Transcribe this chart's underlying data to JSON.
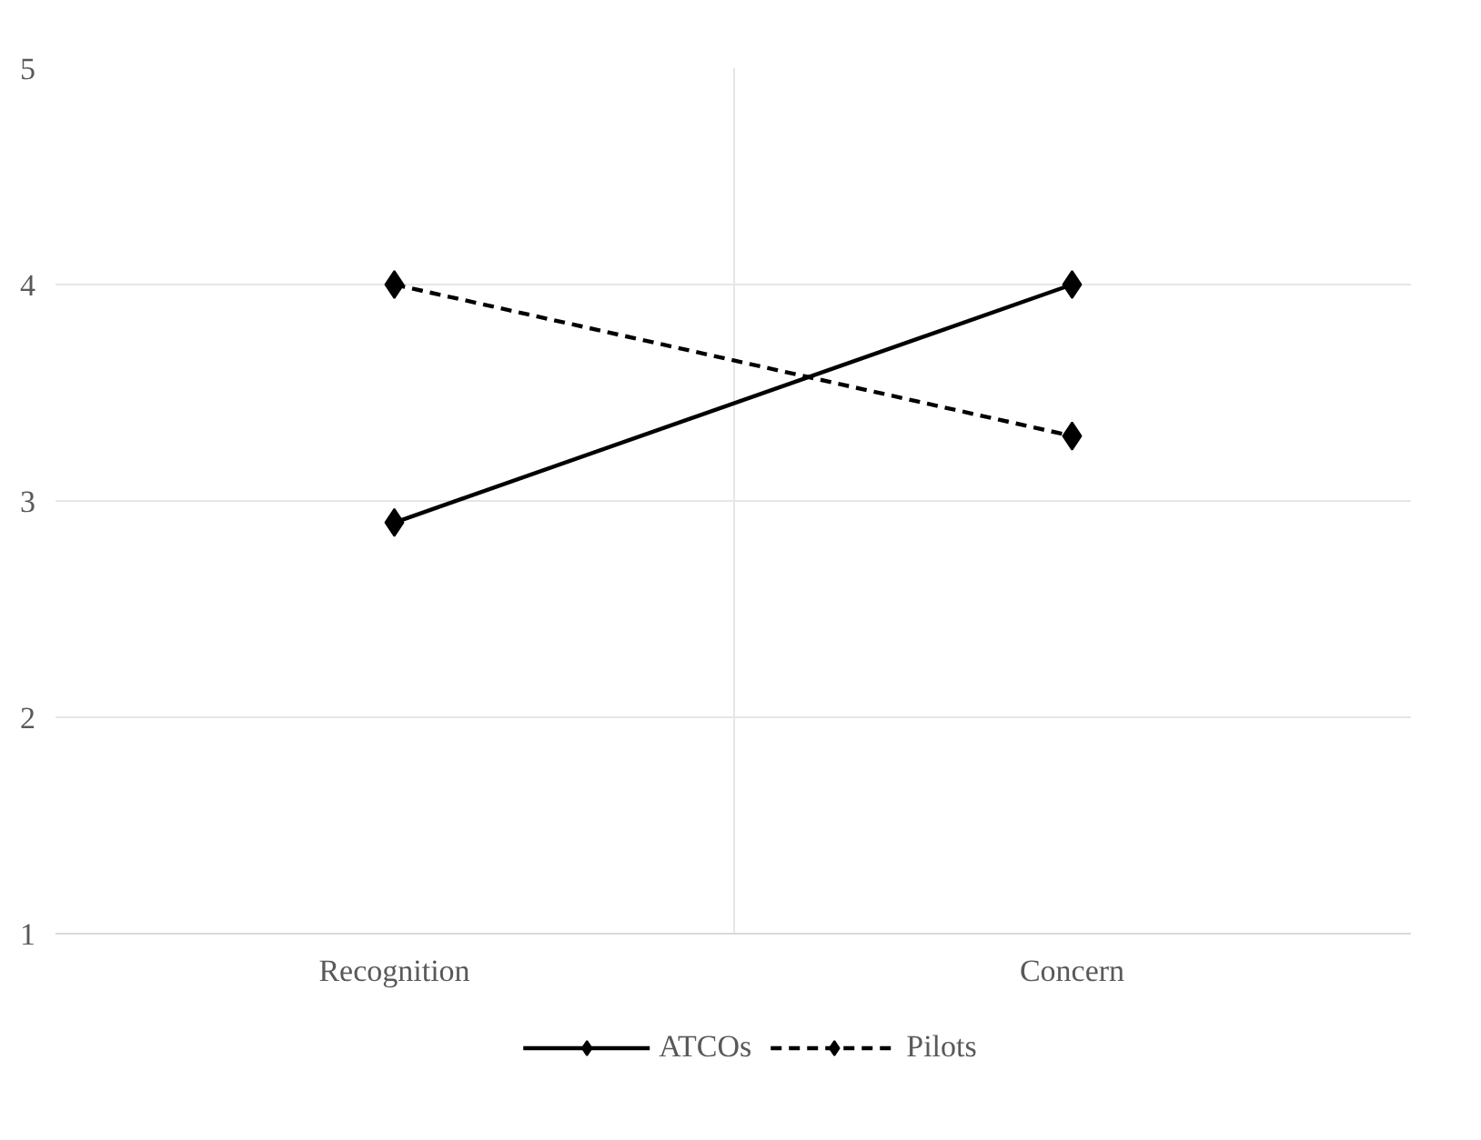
{
  "chart_data": {
    "type": "line",
    "categories": [
      "Recognition",
      "Concern"
    ],
    "series": [
      {
        "name": "ATCOs",
        "color": "#000000",
        "values": [
          2.9,
          4.0
        ],
        "line_style": "solid"
      },
      {
        "name": "Pilots",
        "color": "#000000",
        "values": [
          4.0,
          3.3
        ],
        "line_style": "dashed"
      }
    ],
    "ylim": [
      1,
      5
    ],
    "yticks": [
      1,
      2,
      3,
      4,
      5
    ],
    "grid": true,
    "legend": "bottom",
    "marker": "diamond"
  }
}
